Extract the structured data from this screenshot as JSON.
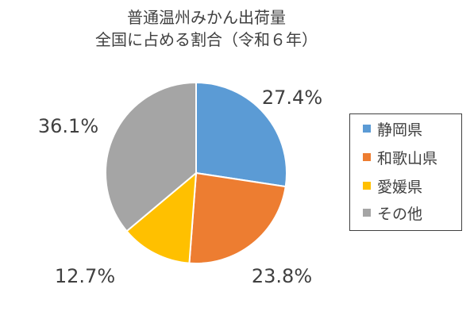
{
  "chart_data": {
    "type": "pie",
    "title_lines": [
      "普通温州みかん出荷量",
      "全国に占める割合（令和６年）"
    ],
    "categories": [
      "静岡県",
      "和歌山県",
      "愛媛県",
      "その他"
    ],
    "values": [
      27.4,
      23.8,
      12.7,
      36.1
    ],
    "labels": [
      "27.4%",
      "23.8%",
      "12.7%",
      "36.1%"
    ],
    "colors": [
      "#5b9bd5",
      "#ed7d31",
      "#ffc000",
      "#a5a5a5"
    ],
    "legend_position": "right"
  }
}
